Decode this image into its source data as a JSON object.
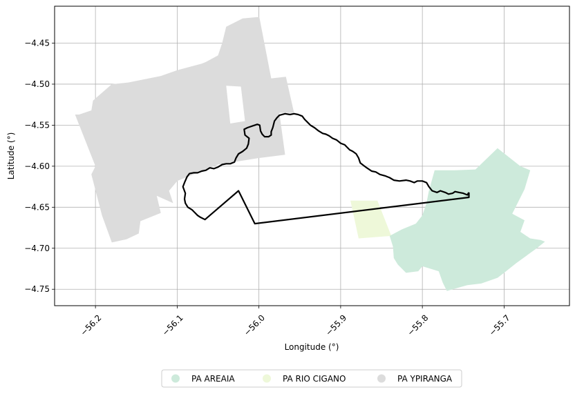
{
  "xlabel": "Longitude (°)",
  "ylabel": "Latitude (°)",
  "chart_data": {
    "type": "map",
    "xlim": [
      -56.25,
      -55.62
    ],
    "ylim": [
      -4.77,
      -4.405
    ],
    "grid": true,
    "xticks": [
      {
        "value": -56.2,
        "label": "−56.2"
      },
      {
        "value": -56.1,
        "label": "−56.1"
      },
      {
        "value": -56.0,
        "label": "−56.0"
      },
      {
        "value": -55.9,
        "label": "−55.9"
      },
      {
        "value": -55.8,
        "label": "−55.8"
      },
      {
        "value": -55.7,
        "label": "−55.7"
      }
    ],
    "yticks": [
      {
        "value": -4.45,
        "label": "−4.45"
      },
      {
        "value": -4.5,
        "label": "−4.50"
      },
      {
        "value": -4.55,
        "label": "−4.55"
      },
      {
        "value": -4.6,
        "label": "−4.60"
      },
      {
        "value": -4.65,
        "label": "−4.65"
      },
      {
        "value": -4.7,
        "label": "−4.70"
      },
      {
        "value": -4.75,
        "label": "−4.75"
      }
    ],
    "legend_position": "bottom-center",
    "legend": [
      {
        "label": "PA AREAIA",
        "color": "#cdeadb"
      },
      {
        "label": "PA RIO CIGANO",
        "color": "#eef8d9"
      },
      {
        "label": "PA YPIRANGA",
        "color": "#dcdcdc"
      }
    ],
    "regions": [
      {
        "name": "PA YPIRANGA",
        "color": "#dcdcdc",
        "rings": [
          [
            [
              -56.22,
              -4.537
            ],
            [
              -56.205,
              -4.532
            ],
            [
              -56.203,
              -4.52
            ],
            [
              -56.18,
              -4.5
            ],
            [
              -56.16,
              -4.498
            ],
            [
              -56.12,
              -4.49
            ],
            [
              -56.1,
              -4.483
            ],
            [
              -56.085,
              -4.479
            ],
            [
              -56.07,
              -4.475
            ],
            [
              -56.065,
              -4.473
            ],
            [
              -56.05,
              -4.465
            ],
            [
              -56.045,
              -4.45
            ],
            [
              -56.04,
              -4.43
            ],
            [
              -56.02,
              -4.42
            ],
            [
              -55.9995,
              -4.418
            ],
            [
              -55.985,
              -4.493
            ],
            [
              -55.967,
              -4.491
            ],
            [
              -55.957,
              -4.535
            ],
            [
              -55.975,
              -4.535
            ],
            [
              -55.968,
              -4.586
            ],
            [
              -56.0,
              -4.59
            ],
            [
              -56.05,
              -4.598
            ],
            [
              -56.1,
              -4.618
            ],
            [
              -56.11,
              -4.63
            ],
            [
              -56.105,
              -4.645
            ],
            [
              -56.125,
              -4.636
            ],
            [
              -56.12,
              -4.657
            ],
            [
              -56.135,
              -4.663
            ],
            [
              -56.145,
              -4.667
            ],
            [
              -56.147,
              -4.682
            ],
            [
              -56.162,
              -4.689
            ],
            [
              -56.18,
              -4.693
            ],
            [
              -56.192,
              -4.66
            ],
            [
              -56.205,
              -4.61
            ],
            [
              -56.2,
              -4.6
            ],
            [
              -56.225,
              -4.537
            ]
          ],
          [
            [
              -56.04,
              -4.502
            ],
            [
              -56.022,
              -4.503
            ],
            [
              -56.017,
              -4.545
            ],
            [
              -56.035,
              -4.548
            ]
          ]
        ]
      },
      {
        "name": "PA RIO CIGANO",
        "color": "#eef8d9",
        "rings": [
          [
            [
              -55.888,
              -4.642
            ],
            [
              -55.855,
              -4.642
            ],
            [
              -55.838,
              -4.685
            ],
            [
              -55.878,
              -4.688
            ]
          ]
        ]
      },
      {
        "name": "PA AREAIA",
        "color": "#cdeadb",
        "rings": [
          [
            [
              -55.785,
              -4.605
            ],
            [
              -55.76,
              -4.605
            ],
            [
              -55.735,
              -4.604
            ],
            [
              -55.708,
              -4.578
            ],
            [
              -55.68,
              -4.6
            ],
            [
              -55.668,
              -4.605
            ],
            [
              -55.675,
              -4.628
            ],
            [
              -55.69,
              -4.658
            ],
            [
              -55.675,
              -4.666
            ],
            [
              -55.68,
              -4.68
            ],
            [
              -55.668,
              -4.688
            ],
            [
              -55.655,
              -4.69
            ],
            [
              -55.65,
              -4.692
            ],
            [
              -55.66,
              -4.7
            ],
            [
              -55.685,
              -4.718
            ],
            [
              -55.7,
              -4.73
            ],
            [
              -55.708,
              -4.736
            ],
            [
              -55.728,
              -4.743
            ],
            [
              -55.745,
              -4.745
            ],
            [
              -55.77,
              -4.752
            ],
            [
              -55.775,
              -4.742
            ],
            [
              -55.78,
              -4.728
            ],
            [
              -55.8,
              -4.722
            ],
            [
              -55.805,
              -4.728
            ],
            [
              -55.82,
              -4.73
            ],
            [
              -55.83,
              -4.72
            ],
            [
              -55.835,
              -4.712
            ],
            [
              -55.836,
              -4.698
            ],
            [
              -55.84,
              -4.685
            ],
            [
              -55.825,
              -4.677
            ],
            [
              -55.808,
              -4.67
            ],
            [
              -55.8,
              -4.66
            ],
            [
              -55.795,
              -4.645
            ],
            [
              -55.792,
              -4.63
            ]
          ]
        ]
      }
    ],
    "outline": {
      "color": "#000000",
      "points": [
        [
          -55.743,
          -4.632
        ],
        [
          -55.745,
          -4.635
        ],
        [
          -55.75,
          -4.633
        ],
        [
          -55.755,
          -4.632
        ],
        [
          -55.76,
          -4.631
        ],
        [
          -55.763,
          -4.633
        ],
        [
          -55.768,
          -4.634
        ],
        [
          -55.772,
          -4.632
        ],
        [
          -55.778,
          -4.63
        ],
        [
          -55.782,
          -4.632
        ],
        [
          -55.788,
          -4.63
        ],
        [
          -55.792,
          -4.625
        ],
        [
          -55.795,
          -4.62
        ],
        [
          -55.8,
          -4.618
        ],
        [
          -55.806,
          -4.618
        ],
        [
          -55.81,
          -4.62
        ],
        [
          -55.815,
          -4.618
        ],
        [
          -55.82,
          -4.617
        ],
        [
          -55.828,
          -4.618
        ],
        [
          -55.835,
          -4.617
        ],
        [
          -55.84,
          -4.614
        ],
        [
          -55.845,
          -4.612
        ],
        [
          -55.852,
          -4.61
        ],
        [
          -55.857,
          -4.607
        ],
        [
          -55.862,
          -4.606
        ],
        [
          -55.868,
          -4.602
        ],
        [
          -55.872,
          -4.599
        ],
        [
          -55.876,
          -4.596
        ],
        [
          -55.878,
          -4.59
        ],
        [
          -55.881,
          -4.585
        ],
        [
          -55.885,
          -4.582
        ],
        [
          -55.889,
          -4.58
        ],
        [
          -55.892,
          -4.577
        ],
        [
          -55.895,
          -4.574
        ],
        [
          -55.9,
          -4.572
        ],
        [
          -55.905,
          -4.568
        ],
        [
          -55.91,
          -4.566
        ],
        [
          -55.914,
          -4.563
        ],
        [
          -55.918,
          -4.561
        ],
        [
          -55.922,
          -4.56
        ],
        [
          -55.927,
          -4.557
        ],
        [
          -55.932,
          -4.553
        ],
        [
          -55.937,
          -4.55
        ],
        [
          -55.94,
          -4.547
        ],
        [
          -55.944,
          -4.543
        ],
        [
          -55.947,
          -4.539
        ],
        [
          -55.952,
          -4.537
        ],
        [
          -55.957,
          -4.536
        ],
        [
          -55.962,
          -4.537
        ],
        [
          -55.968,
          -4.536
        ],
        [
          -55.975,
          -4.538
        ],
        [
          -55.978,
          -4.541
        ],
        [
          -55.981,
          -4.545
        ],
        [
          -55.983,
          -4.553
        ],
        [
          -55.985,
          -4.558
        ],
        [
          -55.985,
          -4.562
        ],
        [
          -55.988,
          -4.564
        ],
        [
          -55.993,
          -4.564
        ],
        [
          -55.996,
          -4.561
        ],
        [
          -55.998,
          -4.557
        ],
        [
          -55.999,
          -4.55
        ],
        [
          -56.002,
          -4.549
        ],
        [
          -56.008,
          -4.551
        ],
        [
          -56.014,
          -4.553
        ],
        [
          -56.018,
          -4.555
        ],
        [
          -56.017,
          -4.562
        ],
        [
          -56.012,
          -4.566
        ],
        [
          -56.013,
          -4.573
        ],
        [
          -56.015,
          -4.578
        ],
        [
          -56.02,
          -4.582
        ],
        [
          -56.025,
          -4.585
        ],
        [
          -56.028,
          -4.59
        ],
        [
          -56.03,
          -4.595
        ],
        [
          -56.035,
          -4.597
        ],
        [
          -56.04,
          -4.597
        ],
        [
          -56.045,
          -4.598
        ],
        [
          -56.05,
          -4.601
        ],
        [
          -56.055,
          -4.603
        ],
        [
          -56.06,
          -4.602
        ],
        [
          -56.065,
          -4.605
        ],
        [
          -56.07,
          -4.606
        ],
        [
          -56.075,
          -4.608
        ],
        [
          -56.08,
          -4.608
        ],
        [
          -56.085,
          -4.609
        ],
        [
          -56.088,
          -4.613
        ],
        [
          -56.091,
          -4.62
        ],
        [
          -56.093,
          -4.625
        ],
        [
          -56.09,
          -4.633
        ],
        [
          -56.091,
          -4.64
        ],
        [
          -56.09,
          -4.645
        ],
        [
          -56.087,
          -4.65
        ],
        [
          -56.082,
          -4.653
        ],
        [
          -56.078,
          -4.657
        ],
        [
          -56.075,
          -4.66
        ],
        [
          -56.072,
          -4.662
        ],
        [
          -56.066,
          -4.665
        ],
        [
          -56.025,
          -4.63
        ],
        [
          -56.005,
          -4.67
        ],
        [
          -55.743,
          -4.638
        ],
        [
          -55.743,
          -4.632
        ]
      ]
    }
  }
}
